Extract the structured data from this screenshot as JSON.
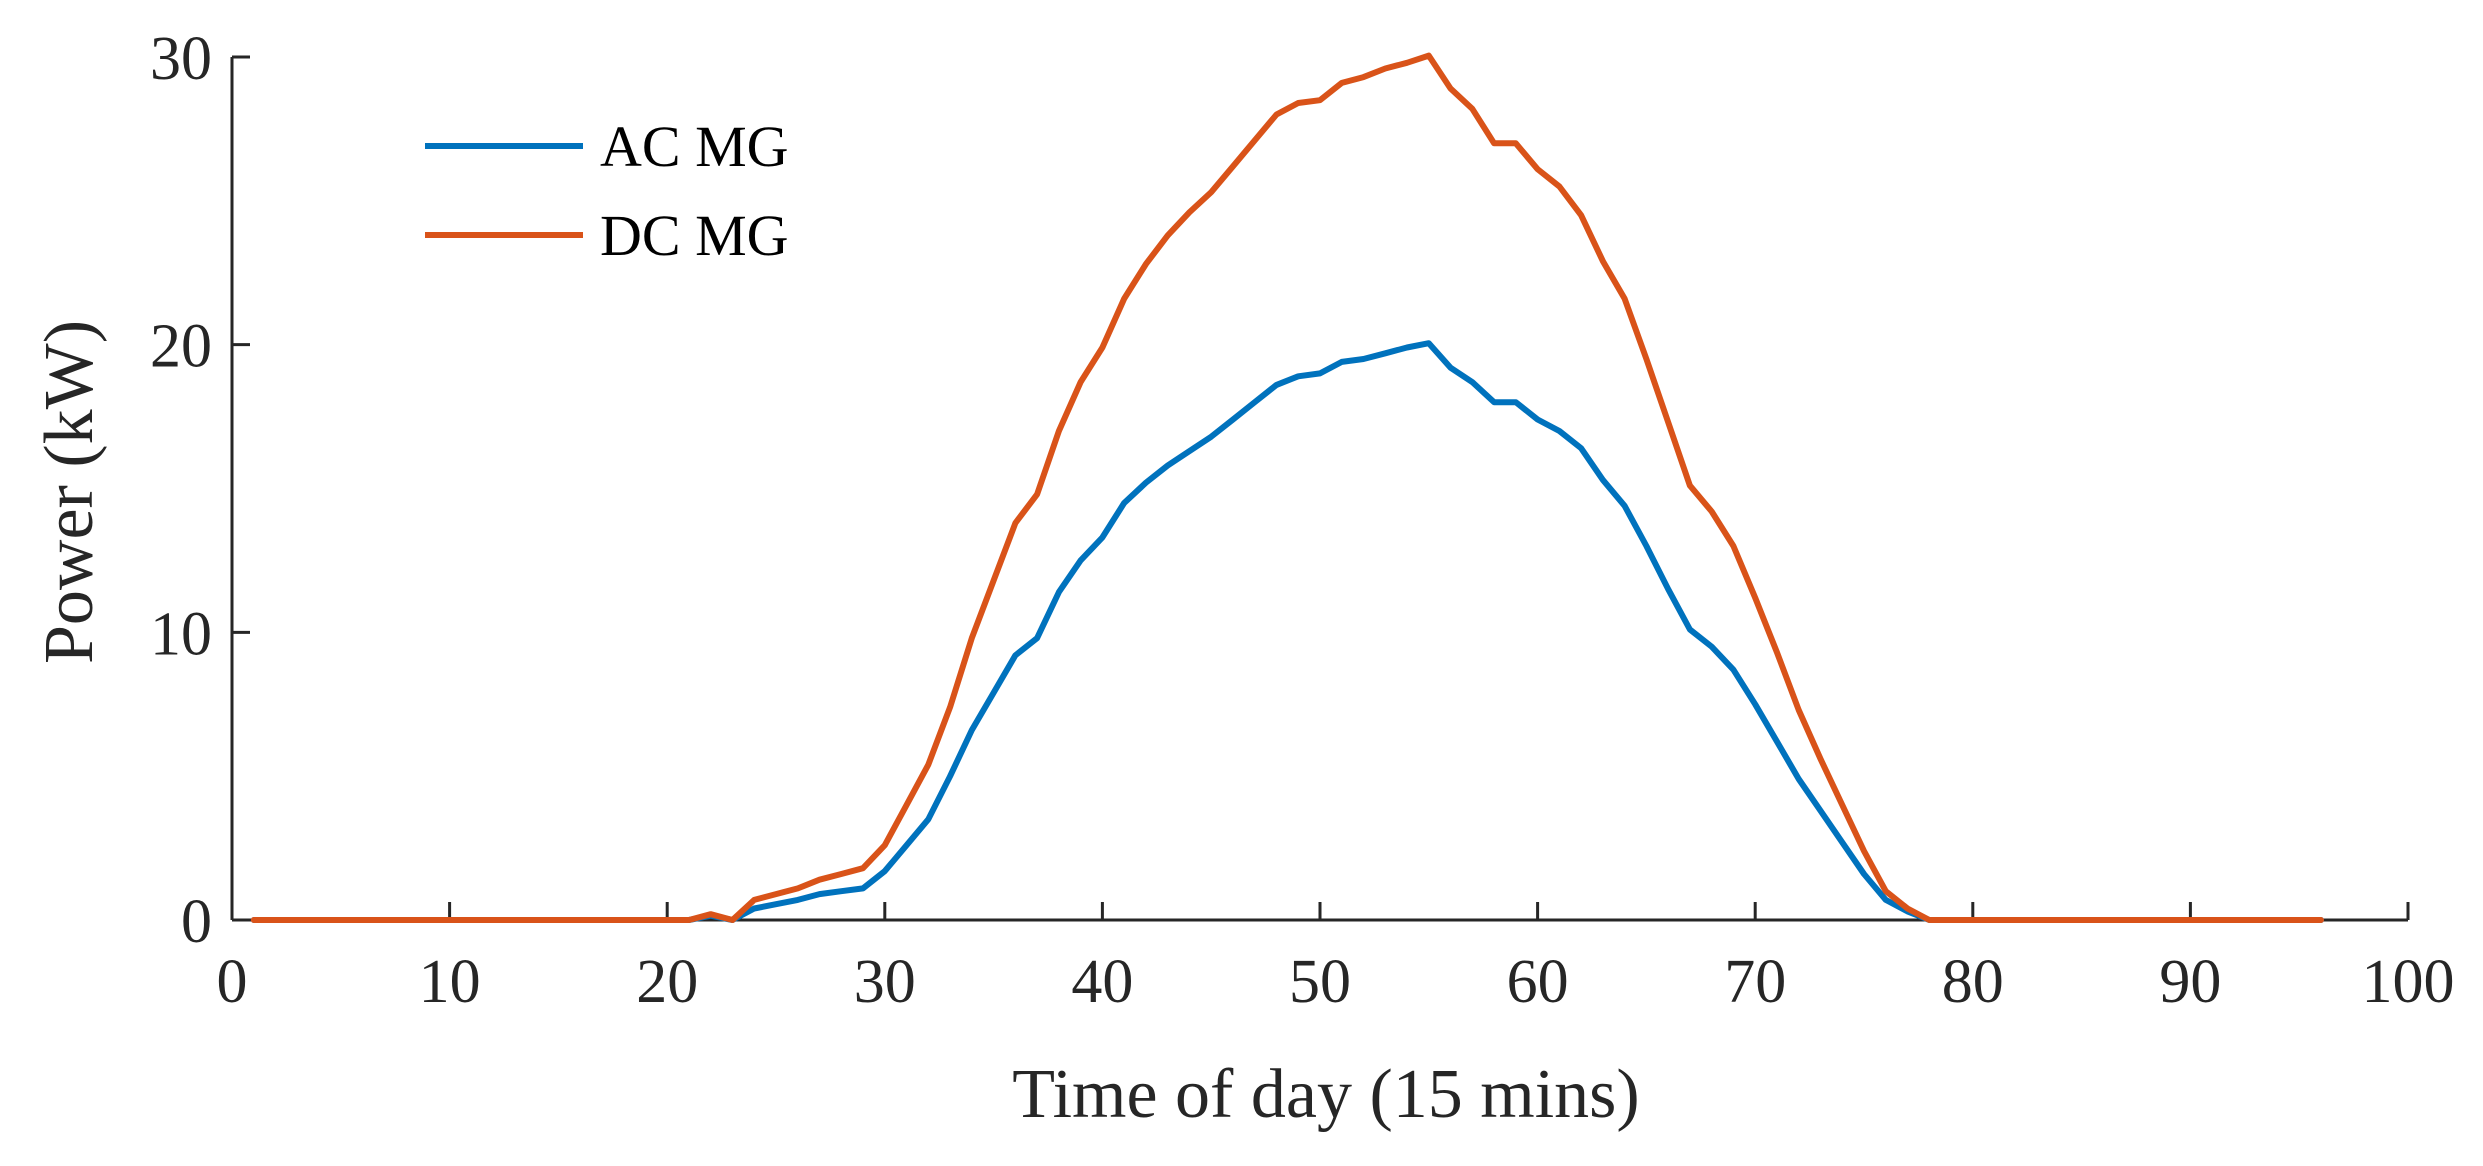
{
  "chart_data": {
    "type": "line",
    "title": "",
    "xlabel": "Time of day (15 mins)",
    "ylabel": "Power (kW)",
    "xlim": [
      0,
      100
    ],
    "ylim": [
      0,
      30
    ],
    "xticks": [
      0,
      10,
      20,
      30,
      40,
      50,
      60,
      70,
      80,
      90,
      100
    ],
    "yticks": [
      0,
      10,
      20,
      30
    ],
    "grid": false,
    "legend_position": "top-left",
    "x": [
      1,
      2,
      3,
      4,
      5,
      6,
      7,
      8,
      9,
      10,
      11,
      12,
      13,
      14,
      15,
      16,
      17,
      18,
      19,
      20,
      21,
      22,
      23,
      24,
      25,
      26,
      27,
      28,
      29,
      30,
      31,
      32,
      33,
      34,
      35,
      36,
      37,
      38,
      39,
      40,
      41,
      42,
      43,
      44,
      45,
      46,
      47,
      48,
      49,
      50,
      51,
      52,
      53,
      54,
      55,
      56,
      57,
      58,
      59,
      60,
      61,
      62,
      63,
      64,
      65,
      66,
      67,
      68,
      69,
      70,
      71,
      72,
      73,
      74,
      75,
      76,
      77,
      78,
      79,
      80,
      81,
      82,
      83,
      84,
      85,
      86,
      87,
      88,
      89,
      90,
      91,
      92,
      93,
      94,
      95,
      96
    ],
    "series": [
      {
        "name": "AC MG",
        "color": "#0072BD",
        "values": [
          0,
          0,
          0,
          0,
          0,
          0,
          0,
          0,
          0,
          0,
          0,
          0,
          0,
          0,
          0,
          0,
          0,
          0,
          0,
          0,
          0,
          0.15,
          0,
          0.4,
          0.55,
          0.7,
          0.9,
          1.0,
          1.1,
          1.7,
          2.6,
          3.5,
          5.0,
          6.6,
          7.9,
          9.2,
          9.8,
          11.4,
          12.5,
          13.3,
          14.5,
          15.2,
          15.8,
          16.3,
          16.8,
          17.4,
          18.0,
          18.6,
          18.9,
          19.0,
          19.4,
          19.5,
          19.7,
          19.9,
          20.05,
          19.2,
          18.7,
          18.0,
          18.0,
          17.4,
          17.0,
          16.4,
          15.3,
          14.4,
          13.0,
          11.5,
          10.1,
          9.5,
          8.7,
          7.5,
          6.2,
          4.9,
          3.8,
          2.7,
          1.6,
          0.7,
          0.3,
          0,
          0,
          0,
          0,
          0,
          0,
          0,
          0,
          0,
          0,
          0,
          0,
          0,
          0,
          0,
          0,
          0,
          0,
          0
        ]
      },
      {
        "name": "DC MG",
        "color": "#D95319",
        "values": [
          0,
          0,
          0,
          0,
          0,
          0,
          0,
          0,
          0,
          0,
          0,
          0,
          0,
          0,
          0,
          0,
          0,
          0,
          0,
          0,
          0,
          0.2,
          0,
          0.7,
          0.9,
          1.1,
          1.4,
          1.6,
          1.8,
          2.6,
          4.0,
          5.4,
          7.4,
          9.8,
          11.8,
          13.8,
          14.8,
          17.0,
          18.7,
          19.9,
          21.6,
          22.8,
          23.8,
          24.6,
          25.3,
          26.2,
          27.1,
          28.0,
          28.4,
          28.5,
          29.1,
          29.3,
          29.6,
          29.8,
          30.05,
          28.9,
          28.2,
          27.0,
          27.0,
          26.1,
          25.5,
          24.5,
          22.9,
          21.6,
          19.5,
          17.3,
          15.1,
          14.2,
          13.0,
          11.2,
          9.3,
          7.3,
          5.6,
          4.0,
          2.4,
          1.0,
          0.4,
          0,
          0,
          0,
          0,
          0,
          0,
          0,
          0,
          0,
          0,
          0,
          0,
          0,
          0,
          0,
          0,
          0,
          0,
          0
        ]
      }
    ]
  }
}
